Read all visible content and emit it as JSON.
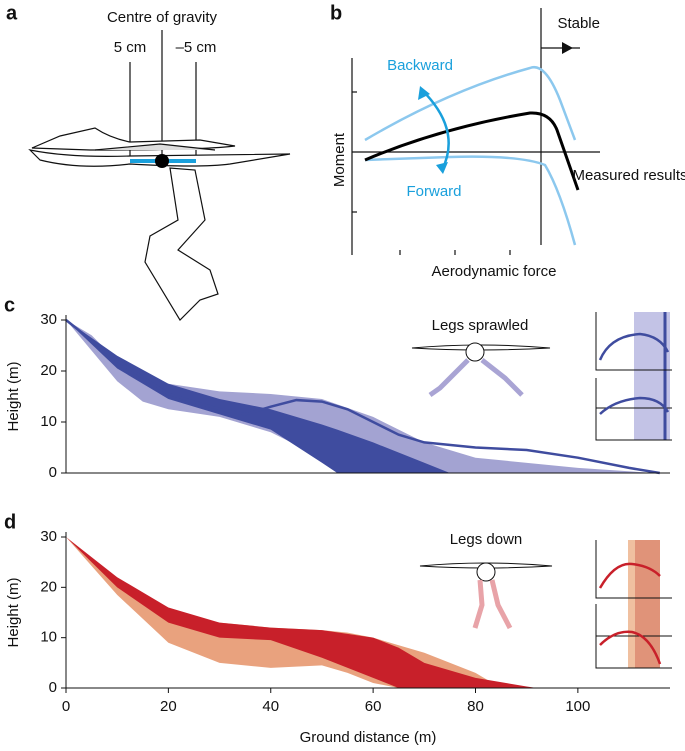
{
  "diagram_a": {
    "label": "a",
    "title": "Centre of gravity",
    "left_mark": "5 cm",
    "right_mark": "–5 cm"
  },
  "schematic_b": {
    "label": "b",
    "y_label": "Moment",
    "x_label": "Aerodynamic force",
    "stable": "Stable",
    "backward": "Backward",
    "forward": "Forward",
    "measured": "Measured results"
  },
  "chart_data": [
    {
      "type": "area",
      "label": "c",
      "annotation": "Legs sprawled",
      "y_label": "Height (m)",
      "xlim": [
        0,
        118
      ],
      "ylim": [
        0,
        30
      ],
      "yticks": [
        0,
        10,
        20,
        30
      ],
      "series": [
        {
          "color": "#a3a3d2",
          "kind": "band",
          "x": [
            0,
            5,
            10,
            15,
            20,
            30,
            40,
            50,
            60,
            70,
            80,
            100,
            115
          ],
          "values": [
            30,
            27,
            22,
            19,
            17.5,
            16,
            15.5,
            14.5,
            11,
            6,
            3,
            1,
            0
          ],
          "lower": [
            30,
            24,
            18,
            14,
            12.5,
            11,
            8,
            3,
            0,
            0,
            0,
            0,
            0
          ]
        },
        {
          "color": "#3f4c9f",
          "kind": "band",
          "x": [
            0,
            10,
            20,
            30,
            40,
            50,
            53,
            60,
            70,
            75
          ],
          "values": [
            30,
            23,
            17.5,
            14.5,
            12.5,
            9.5,
            8.5,
            6,
            2,
            0
          ],
          "lower": [
            30,
            20.5,
            14.5,
            11.5,
            8.5,
            2,
            0,
            0,
            0,
            0
          ]
        },
        {
          "color": "#3f4c9f",
          "kind": "line",
          "x": [
            0,
            10,
            20,
            30,
            35,
            40,
            45,
            50,
            55,
            60,
            65,
            70,
            80,
            90,
            100,
            110,
            116
          ],
          "values": [
            30,
            22,
            15.5,
            12.5,
            11.5,
            13,
            14.3,
            14,
            12.5,
            10,
            7.5,
            6,
            5,
            4.5,
            3,
            1,
            0
          ]
        }
      ]
    },
    {
      "type": "area",
      "label": "d",
      "annotation": "Legs down",
      "y_label": "Height (m)",
      "x_label": "Ground distance (m)",
      "xlim": [
        0,
        118
      ],
      "ylim": [
        0,
        30
      ],
      "yticks": [
        0,
        10,
        20,
        30
      ],
      "xticks": [
        0,
        20,
        40,
        60,
        80,
        100
      ],
      "series": [
        {
          "color": "#e9a27e",
          "kind": "band",
          "x": [
            0,
            10,
            20,
            30,
            40,
            50,
            55,
            60,
            65,
            70,
            80,
            85
          ],
          "values": [
            30,
            21,
            15,
            13,
            12,
            11.5,
            11,
            10,
            8.5,
            7,
            3,
            0
          ],
          "lower": [
            30,
            18.5,
            9,
            5,
            4,
            4.5,
            3,
            1,
            0,
            0,
            0,
            0
          ]
        },
        {
          "color": "#c8202a",
          "kind": "band",
          "x": [
            0,
            10,
            20,
            30,
            40,
            50,
            60,
            65,
            70,
            80,
            90,
            92
          ],
          "values": [
            30,
            22,
            16,
            13,
            12,
            11.5,
            10,
            8,
            5,
            2,
            0.3,
            0
          ],
          "lower": [
            30,
            20,
            13,
            10,
            9.5,
            6,
            2,
            0,
            0,
            0,
            0,
            0
          ]
        }
      ]
    }
  ]
}
